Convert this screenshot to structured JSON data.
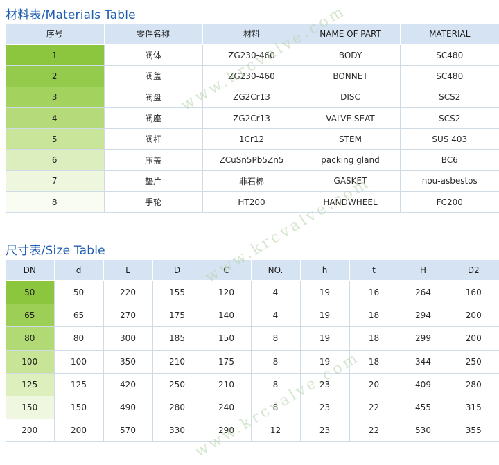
{
  "materials": {
    "title": "材料表/Materials Table",
    "headers": [
      "序号",
      "零件名称",
      "材料",
      "NAME OF PART",
      "MATERIAL"
    ],
    "rows": [
      [
        "1",
        "阀体",
        "ZG230-460",
        "BODY",
        "SC480"
      ],
      [
        "2",
        "阀盖",
        "ZG230-460",
        "BONNET",
        "SC480"
      ],
      [
        "3",
        "阀盘",
        "ZG2Cr13",
        "DISC",
        "SCS2"
      ],
      [
        "4",
        "阀座",
        "ZG2Cr13",
        "VALVE SEAT",
        "SCS2"
      ],
      [
        "5",
        "阀杆",
        "1Cr12",
        "STEM",
        "SUS 403"
      ],
      [
        "6",
        "压盖",
        "ZCuSn5Pb5Zn5",
        "packing gland",
        "BC6"
      ],
      [
        "7",
        "垫片",
        "非石棉",
        "GASKET",
        "nou-asbestos"
      ],
      [
        "8",
        "手轮",
        "HT200",
        "HANDWHEEL",
        "FC200"
      ]
    ],
    "first_col_colors": [
      "#8cc63f",
      "#95cb4c",
      "#a3d25f",
      "#b4da79",
      "#c8e59a",
      "#dceebd",
      "#eef6de",
      "#f9fcf3"
    ]
  },
  "sizes": {
    "title": "尺寸表/Size Table",
    "headers": [
      "DN",
      "d",
      "L",
      "D",
      "C",
      "NO.",
      "h",
      "t",
      "H",
      "D2"
    ],
    "rows": [
      [
        "50",
        "50",
        "220",
        "155",
        "120",
        "4",
        "19",
        "16",
        "264",
        "160"
      ],
      [
        "65",
        "65",
        "270",
        "175",
        "140",
        "4",
        "19",
        "18",
        "294",
        "200"
      ],
      [
        "80",
        "80",
        "300",
        "185",
        "150",
        "8",
        "19",
        "18",
        "299",
        "200"
      ],
      [
        "100",
        "100",
        "350",
        "210",
        "175",
        "8",
        "19",
        "18",
        "344",
        "250"
      ],
      [
        "125",
        "125",
        "420",
        "250",
        "210",
        "8",
        "23",
        "20",
        "409",
        "280"
      ],
      [
        "150",
        "150",
        "490",
        "280",
        "240",
        "8",
        "23",
        "22",
        "455",
        "315"
      ],
      [
        "200",
        "200",
        "570",
        "330",
        "290",
        "12",
        "23",
        "22",
        "530",
        "355"
      ]
    ],
    "first_col_colors": [
      "#8cc63f",
      "#9dcf57",
      "#b1d974",
      "#c7e497",
      "#dcefbd",
      "#eff7e0",
      "#ffffff"
    ]
  },
  "watermark": "www.krcvalve.com"
}
